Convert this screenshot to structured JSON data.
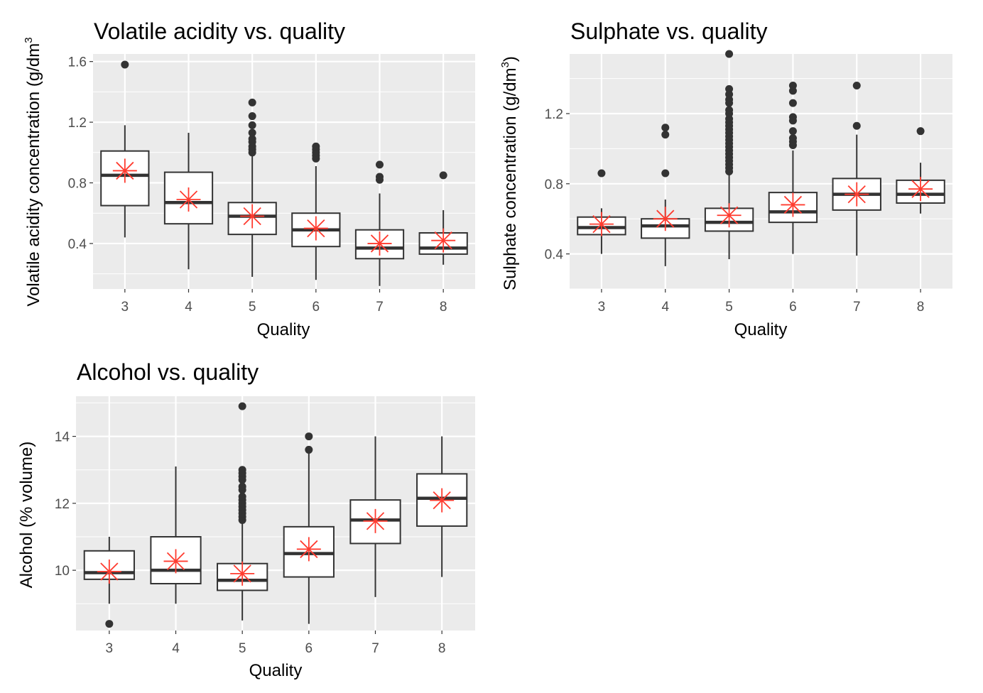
{
  "chart_data": [
    {
      "type": "box",
      "title": "Volatile acidity vs. quality",
      "xlabel": "Quality",
      "ylabel": "Volatile acidity concentration (g/dm",
      "ylabel_sup": "3",
      "ylabel_suffix": "",
      "categories": [
        "3",
        "4",
        "5",
        "6",
        "7",
        "8"
      ],
      "ylim": [
        0.1,
        1.65
      ],
      "yticks": [
        0.4,
        0.8,
        1.2,
        1.6
      ],
      "ytick_labels": [
        "0.4",
        "0.8",
        "1.2",
        "1.6"
      ],
      "boxes": [
        {
          "q1": 0.65,
          "median": 0.85,
          "q3": 1.01,
          "whisker_low": 0.44,
          "whisker_high": 1.18,
          "mean": 0.88,
          "outliers": [
            1.58
          ]
        },
        {
          "q1": 0.53,
          "median": 0.67,
          "q3": 0.87,
          "whisker_low": 0.23,
          "whisker_high": 1.13,
          "mean": 0.69,
          "outliers": []
        },
        {
          "q1": 0.46,
          "median": 0.58,
          "q3": 0.67,
          "whisker_low": 0.18,
          "whisker_high": 0.98,
          "mean": 0.58,
          "outliers": [
            1.0,
            1.02,
            1.04,
            1.07,
            1.09,
            1.13,
            1.18,
            1.24,
            1.33
          ]
        },
        {
          "q1": 0.38,
          "median": 0.49,
          "q3": 0.6,
          "whisker_low": 0.16,
          "whisker_high": 0.91,
          "mean": 0.5,
          "outliers": [
            0.96,
            0.98,
            1.0,
            1.02,
            1.04
          ]
        },
        {
          "q1": 0.3,
          "median": 0.37,
          "q3": 0.49,
          "whisker_low": 0.12,
          "whisker_high": 0.73,
          "mean": 0.4,
          "outliers": [
            0.82,
            0.84,
            0.92
          ]
        },
        {
          "q1": 0.33,
          "median": 0.37,
          "q3": 0.47,
          "whisker_low": 0.26,
          "whisker_high": 0.62,
          "mean": 0.42,
          "outliers": [
            0.85
          ]
        }
      ]
    },
    {
      "type": "box",
      "title": "Sulphate vs. quality",
      "xlabel": "Quality",
      "ylabel": "Sulphate concentration (g/dm",
      "ylabel_sup": "3",
      "ylabel_suffix": ")",
      "categories": [
        "3",
        "4",
        "5",
        "6",
        "7",
        "8"
      ],
      "ylim": [
        0.2,
        1.54
      ],
      "yticks": [
        0.4,
        0.8,
        1.2
      ],
      "ytick_labels": [
        "0.4",
        "0.8",
        "1.2"
      ],
      "boxes": [
        {
          "q1": 0.51,
          "median": 0.55,
          "q3": 0.61,
          "whisker_low": 0.4,
          "whisker_high": 0.66,
          "mean": 0.57,
          "outliers": [
            0.86
          ]
        },
        {
          "q1": 0.49,
          "median": 0.56,
          "q3": 0.6,
          "whisker_low": 0.33,
          "whisker_high": 0.71,
          "mean": 0.6,
          "outliers": [
            0.86,
            1.08,
            1.12
          ]
        },
        {
          "q1": 0.53,
          "median": 0.58,
          "q3": 0.66,
          "whisker_low": 0.37,
          "whisker_high": 0.85,
          "mean": 0.62,
          "outliers": [
            0.87,
            0.89,
            0.91,
            0.93,
            0.95,
            0.97,
            0.99,
            1.01,
            1.03,
            1.05,
            1.07,
            1.09,
            1.11,
            1.13,
            1.15,
            1.17,
            1.2,
            1.22,
            1.26,
            1.28,
            1.31,
            1.34,
            1.54
          ]
        },
        {
          "q1": 0.58,
          "median": 0.64,
          "q3": 0.75,
          "whisker_low": 0.4,
          "whisker_high": 0.99,
          "mean": 0.68,
          "outliers": [
            1.02,
            1.04,
            1.06,
            1.1,
            1.16,
            1.18,
            1.26,
            1.33,
            1.36
          ]
        },
        {
          "q1": 0.65,
          "median": 0.74,
          "q3": 0.83,
          "whisker_low": 0.39,
          "whisker_high": 1.08,
          "mean": 0.74,
          "outliers": [
            1.13,
            1.36
          ]
        },
        {
          "q1": 0.69,
          "median": 0.74,
          "q3": 0.82,
          "whisker_low": 0.63,
          "whisker_high": 0.92,
          "mean": 0.77,
          "outliers": [
            1.1
          ]
        }
      ]
    },
    {
      "type": "box",
      "title": "Alcohol vs. quality",
      "xlabel": "Quality",
      "ylabel": "Alcohol (% volume)",
      "ylabel_sup": "",
      "ylabel_suffix": "",
      "categories": [
        "3",
        "4",
        "5",
        "6",
        "7",
        "8"
      ],
      "ylim": [
        8.2,
        15.2
      ],
      "yticks": [
        10,
        12,
        14
      ],
      "ytick_labels": [
        "10",
        "12",
        "14"
      ],
      "boxes": [
        {
          "q1": 9.73,
          "median": 9.93,
          "q3": 10.58,
          "whisker_low": 9.0,
          "whisker_high": 11.0,
          "mean": 9.96,
          "outliers": [
            8.4
          ]
        },
        {
          "q1": 9.6,
          "median": 10.0,
          "q3": 11.0,
          "whisker_low": 9.0,
          "whisker_high": 13.1,
          "mean": 10.27,
          "outliers": []
        },
        {
          "q1": 9.4,
          "median": 9.7,
          "q3": 10.2,
          "whisker_low": 8.5,
          "whisker_high": 11.4,
          "mean": 9.9,
          "outliers": [
            11.5,
            11.6,
            11.7,
            11.8,
            11.9,
            12.0,
            12.1,
            12.2,
            12.4,
            12.5,
            12.7,
            12.8,
            12.9,
            13.0,
            14.9
          ]
        },
        {
          "q1": 9.8,
          "median": 10.5,
          "q3": 11.3,
          "whisker_low": 8.4,
          "whisker_high": 13.5,
          "mean": 10.63,
          "outliers": [
            13.6,
            14.0
          ]
        },
        {
          "q1": 10.8,
          "median": 11.5,
          "q3": 12.1,
          "whisker_low": 9.2,
          "whisker_high": 14.0,
          "mean": 11.47,
          "outliers": []
        },
        {
          "q1": 11.32,
          "median": 12.15,
          "q3": 12.88,
          "whisker_low": 9.8,
          "whisker_high": 14.0,
          "mean": 12.09,
          "outliers": []
        }
      ]
    }
  ],
  "colors": {
    "panel_bg": "#ebebeb",
    "grid": "#ffffff",
    "box_line": "#333333",
    "box_fill": "#ffffff",
    "mean_marker": "#ff3b2f",
    "text": "#000000",
    "tick_text": "#4d4d4d"
  }
}
